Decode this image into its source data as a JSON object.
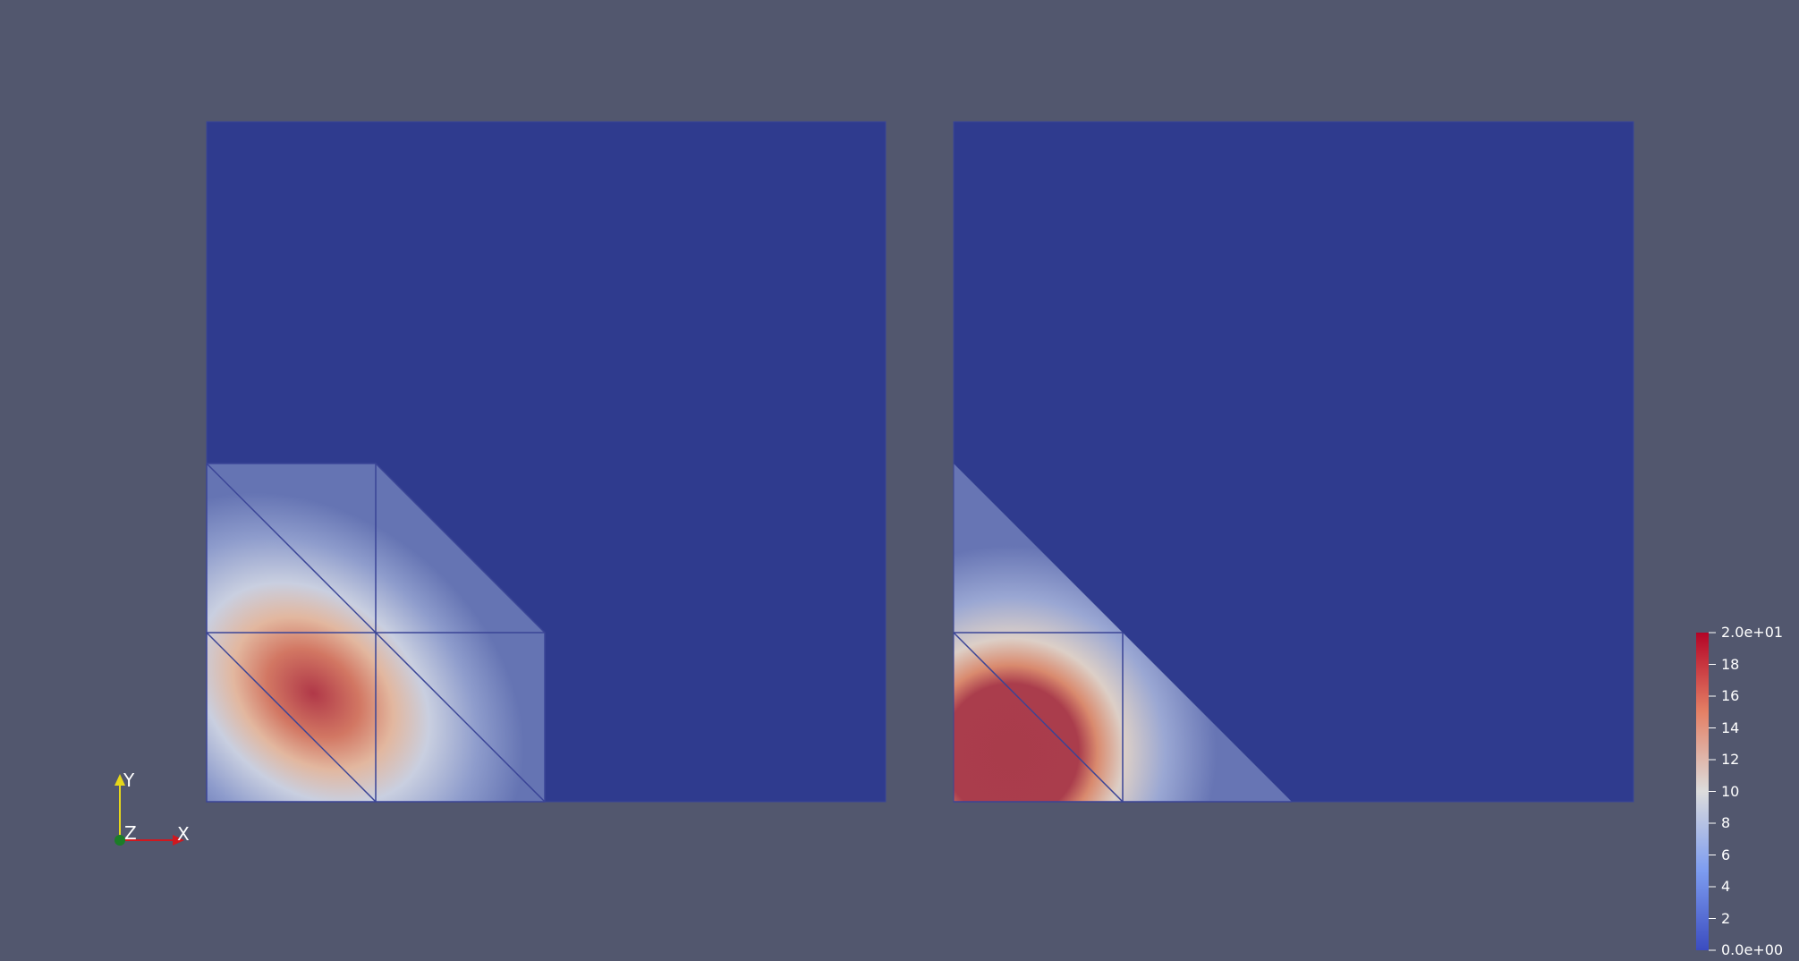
{
  "colors": {
    "background": "#52576e",
    "domain": "#2f3b8e",
    "edge": "#3a4496",
    "cold": "#5a69ad",
    "warm_mid": "#dcc8bc",
    "hot": "#b4404a",
    "axis_x": "#d0181f",
    "axis_y": "#e6d71a",
    "axis_z": "#1b7d27"
  },
  "color_legend": {
    "range": [
      0,
      20
    ],
    "tick_labels": [
      "2.0e+01",
      "18",
      "16",
      "14",
      "12",
      "10",
      "8",
      "6",
      "4",
      "2",
      "0.0e+00"
    ]
  },
  "orientation_axes": {
    "x_label": "X",
    "y_label": "Y",
    "z_label": "Z"
  }
}
